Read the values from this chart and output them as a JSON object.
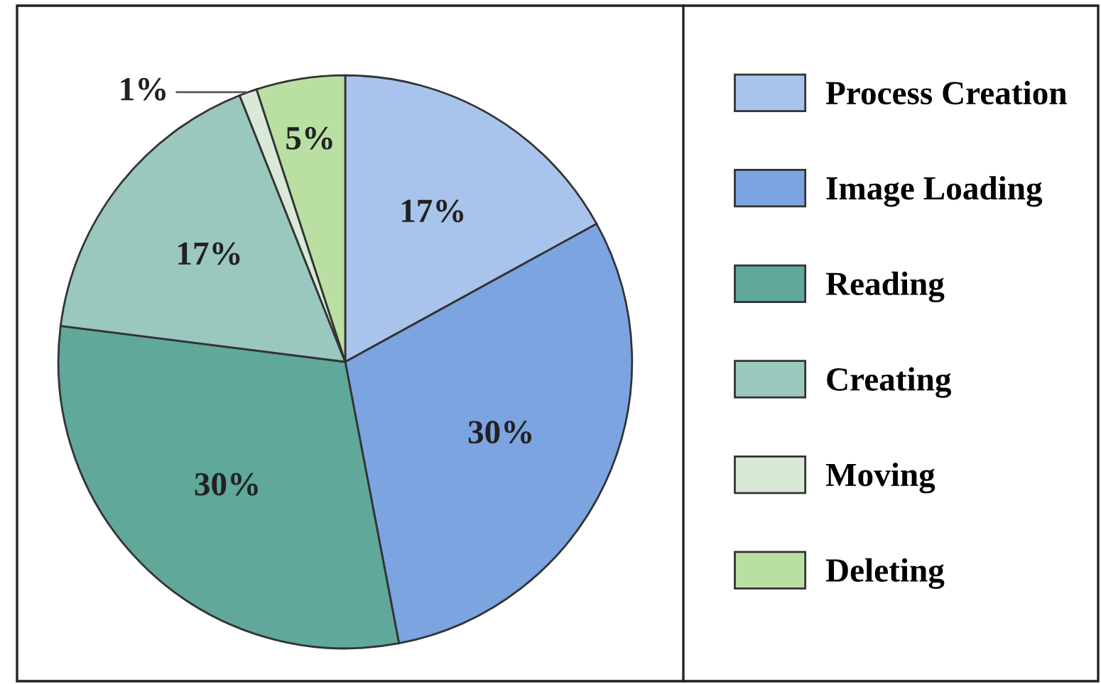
{
  "chart_data": {
    "type": "pie",
    "categories": [
      "Process Creation",
      "Image Loading",
      "Reading",
      "Creating",
      "Moving",
      "Deleting"
    ],
    "values": [
      17,
      30,
      30,
      17,
      1,
      5
    ],
    "colors": [
      "#a9c4ec",
      "#7ba4e0",
      "#5fa89a",
      "#9ac7be",
      "#d8e9d6",
      "#b9e0a2"
    ],
    "value_labels": [
      "17%",
      "30%",
      "30%",
      "17%",
      "1%",
      "5%"
    ],
    "legend": "right"
  }
}
